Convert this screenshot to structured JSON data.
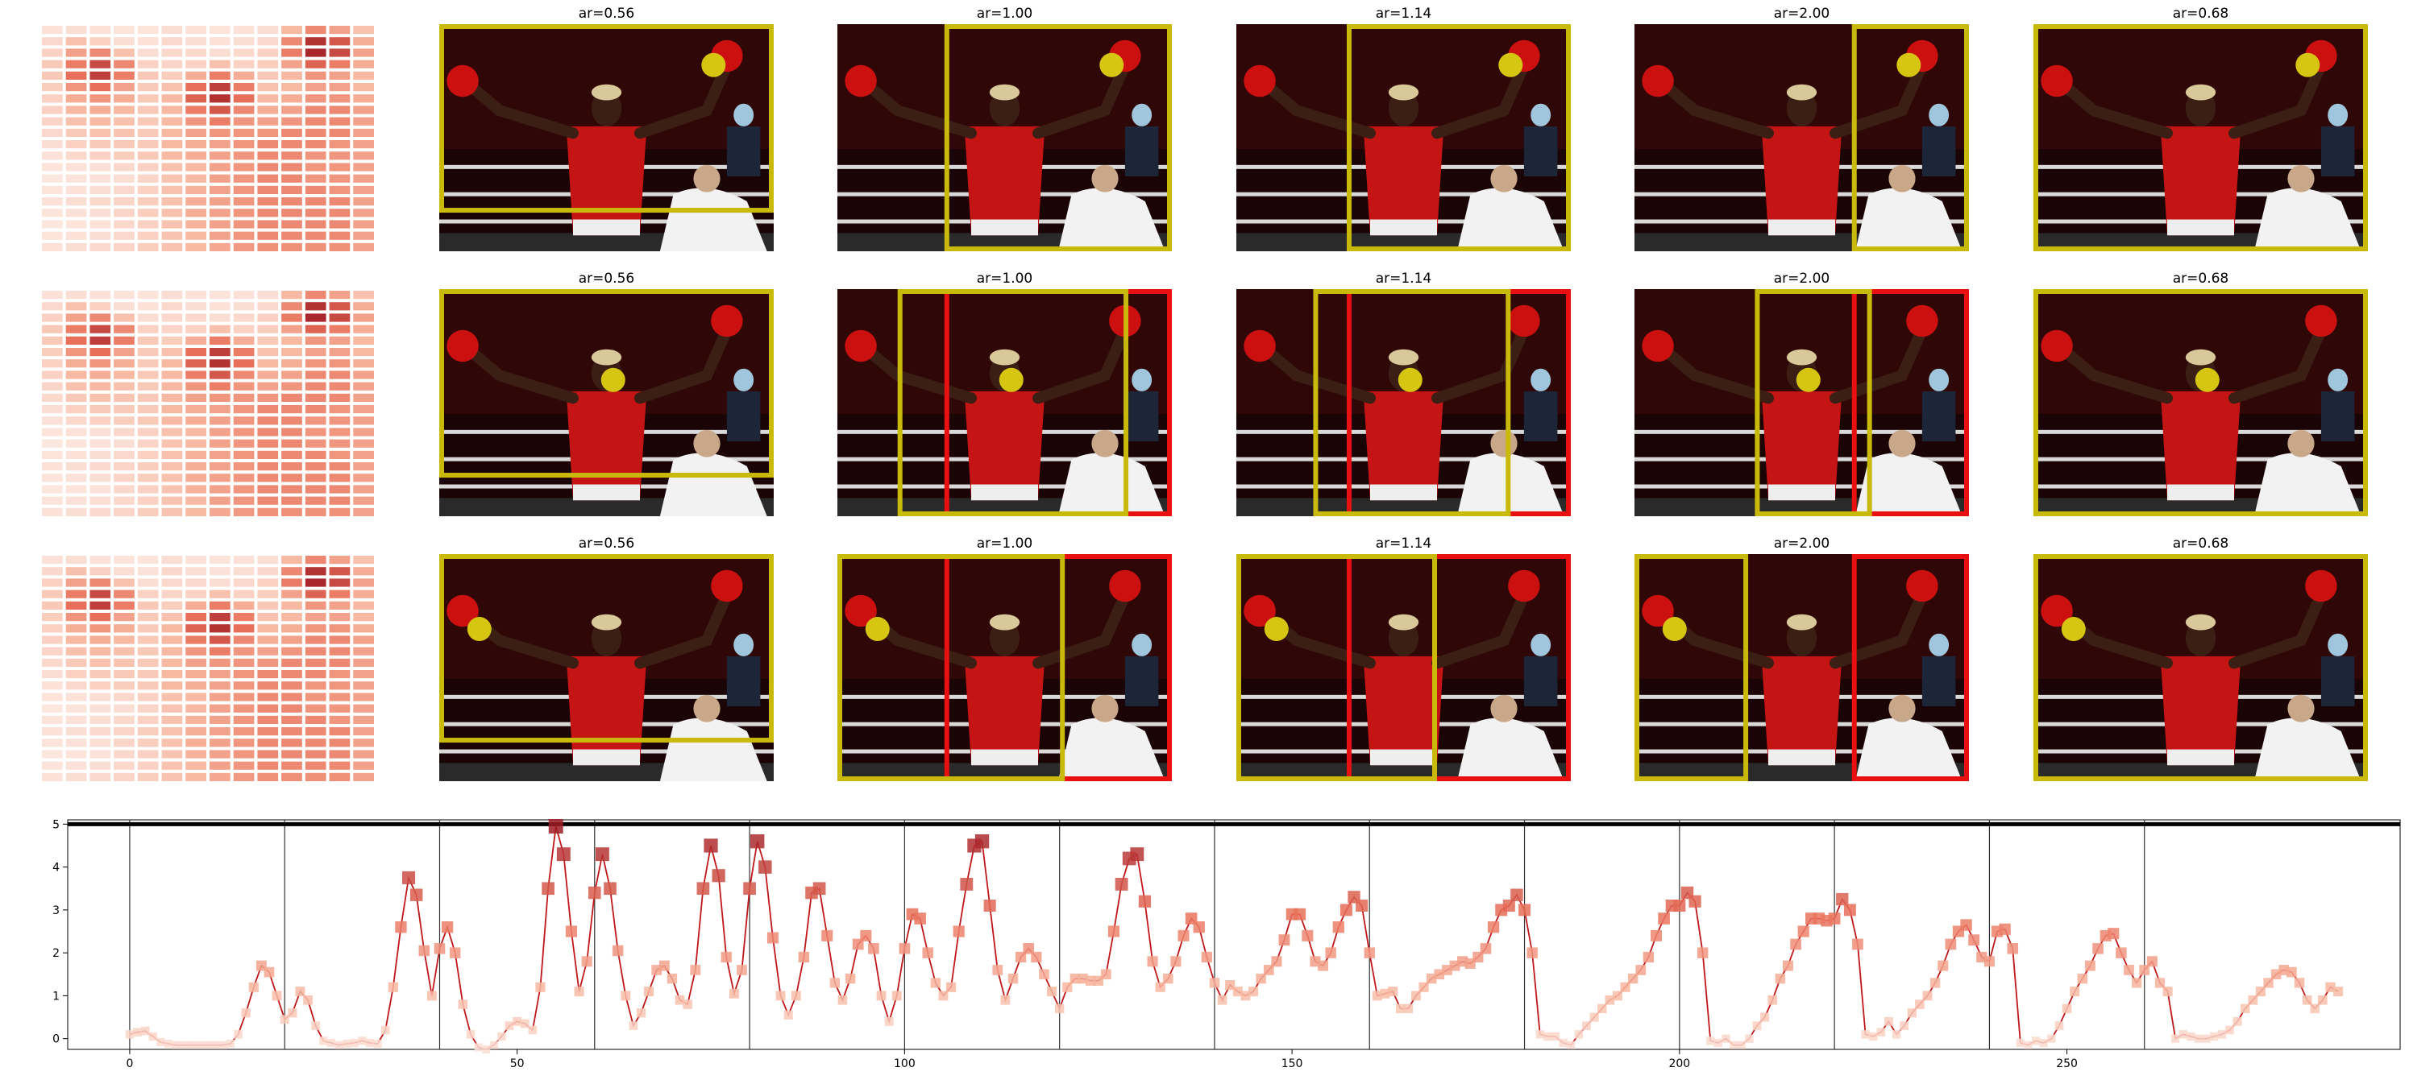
{
  "figure": {
    "panel_titles": [
      "ar=0.56",
      "ar=1.00",
      "ar=1.14",
      "ar=2.00",
      "ar=0.68"
    ],
    "rows": [
      {
        "marker": "top-right glove",
        "boxes": [
          [
            {
              "color": "yellow"
            }
          ],
          [
            {
              "color": "yellow"
            }
          ],
          [
            {
              "color": "yellow"
            }
          ],
          [
            {
              "color": "yellow"
            }
          ],
          [
            {
              "color": "yellow"
            }
          ]
        ]
      },
      {
        "marker": "face",
        "boxes": [
          [
            {
              "color": "yellow"
            }
          ],
          [
            {
              "color": "red"
            },
            {
              "color": "yellow"
            }
          ],
          [
            {
              "color": "red"
            },
            {
              "color": "yellow"
            }
          ],
          [
            {
              "color": "red"
            },
            {
              "color": "yellow"
            }
          ],
          [
            {
              "color": "yellow"
            }
          ]
        ]
      },
      {
        "marker": "left glove",
        "boxes": [
          [
            {
              "color": "yellow"
            }
          ],
          [
            {
              "color": "red"
            },
            {
              "color": "yellow"
            }
          ],
          [
            {
              "color": "red"
            },
            {
              "color": "yellow"
            }
          ],
          [
            {
              "color": "red"
            },
            {
              "color": "yellow"
            }
          ],
          [
            {
              "color": "yellow"
            }
          ]
        ]
      }
    ],
    "colors": {
      "yellow_box": "#c8b90a",
      "red_box": "#e81010",
      "marker": "#d6c611",
      "line": "#c0181a",
      "heat_low": "#fbe9e2",
      "heat_high": "#9e1a24"
    }
  },
  "chart_data": [
    {
      "type": "heatmap",
      "note": "three identical saliency heatmaps (rows x cols = 20 x 14)",
      "rows": 20,
      "cols": 14,
      "values": [
        [
          0.1,
          0.12,
          0.1,
          0.08,
          0.08,
          0.12,
          0.1,
          0.08,
          0.1,
          0.12,
          0.35,
          0.55,
          0.45,
          0.3
        ],
        [
          0.15,
          0.3,
          0.2,
          0.12,
          0.1,
          0.15,
          0.12,
          0.1,
          0.12,
          0.15,
          0.55,
          0.9,
          0.75,
          0.4
        ],
        [
          0.2,
          0.45,
          0.55,
          0.3,
          0.12,
          0.15,
          0.15,
          0.12,
          0.15,
          0.2,
          0.6,
          0.95,
          0.8,
          0.45
        ],
        [
          0.25,
          0.6,
          0.8,
          0.55,
          0.2,
          0.18,
          0.2,
          0.3,
          0.2,
          0.22,
          0.45,
          0.7,
          0.6,
          0.4
        ],
        [
          0.25,
          0.65,
          0.85,
          0.6,
          0.25,
          0.22,
          0.4,
          0.6,
          0.4,
          0.25,
          0.35,
          0.5,
          0.45,
          0.35
        ],
        [
          0.22,
          0.5,
          0.65,
          0.45,
          0.25,
          0.3,
          0.65,
          0.85,
          0.6,
          0.3,
          0.35,
          0.45,
          0.45,
          0.35
        ],
        [
          0.2,
          0.4,
          0.5,
          0.4,
          0.25,
          0.35,
          0.7,
          0.9,
          0.65,
          0.35,
          0.4,
          0.5,
          0.5,
          0.4
        ],
        [
          0.2,
          0.35,
          0.4,
          0.35,
          0.25,
          0.35,
          0.6,
          0.75,
          0.55,
          0.4,
          0.45,
          0.55,
          0.55,
          0.45
        ],
        [
          0.18,
          0.3,
          0.35,
          0.3,
          0.25,
          0.35,
          0.5,
          0.6,
          0.5,
          0.45,
          0.5,
          0.55,
          0.55,
          0.45
        ],
        [
          0.15,
          0.25,
          0.3,
          0.28,
          0.25,
          0.35,
          0.45,
          0.5,
          0.5,
          0.5,
          0.55,
          0.55,
          0.55,
          0.45
        ],
        [
          0.12,
          0.2,
          0.25,
          0.25,
          0.25,
          0.35,
          0.4,
          0.45,
          0.5,
          0.55,
          0.55,
          0.55,
          0.5,
          0.45
        ],
        [
          0.1,
          0.15,
          0.2,
          0.22,
          0.25,
          0.35,
          0.4,
          0.45,
          0.5,
          0.55,
          0.55,
          0.5,
          0.5,
          0.45
        ],
        [
          0.08,
          0.1,
          0.12,
          0.15,
          0.2,
          0.3,
          0.35,
          0.45,
          0.5,
          0.55,
          0.55,
          0.5,
          0.5,
          0.45
        ],
        [
          0.06,
          0.08,
          0.1,
          0.12,
          0.18,
          0.28,
          0.35,
          0.45,
          0.5,
          0.55,
          0.55,
          0.5,
          0.5,
          0.45
        ],
        [
          0.08,
          0.1,
          0.12,
          0.15,
          0.2,
          0.3,
          0.38,
          0.45,
          0.5,
          0.55,
          0.55,
          0.55,
          0.5,
          0.45
        ],
        [
          0.1,
          0.12,
          0.15,
          0.18,
          0.22,
          0.3,
          0.4,
          0.45,
          0.5,
          0.55,
          0.55,
          0.55,
          0.55,
          0.45
        ],
        [
          0.08,
          0.1,
          0.12,
          0.18,
          0.22,
          0.3,
          0.4,
          0.45,
          0.5,
          0.55,
          0.55,
          0.55,
          0.55,
          0.45
        ],
        [
          0.06,
          0.08,
          0.1,
          0.15,
          0.2,
          0.28,
          0.38,
          0.45,
          0.5,
          0.55,
          0.55,
          0.55,
          0.55,
          0.45
        ],
        [
          0.08,
          0.1,
          0.12,
          0.15,
          0.2,
          0.28,
          0.35,
          0.45,
          0.5,
          0.55,
          0.55,
          0.55,
          0.55,
          0.45
        ],
        [
          0.1,
          0.12,
          0.15,
          0.18,
          0.22,
          0.28,
          0.35,
          0.42,
          0.48,
          0.52,
          0.52,
          0.52,
          0.52,
          0.45
        ]
      ]
    },
    {
      "type": "line",
      "title": "",
      "xlabel": "",
      "ylabel": "",
      "xlim": [
        -8,
        293
      ],
      "ylim": [
        -0.25,
        5.1
      ],
      "xticks": [
        0,
        50,
        100,
        150,
        200,
        250
      ],
      "yticks": [
        0,
        1,
        2,
        3,
        4,
        5
      ],
      "hline": 5,
      "vlines": [
        0,
        20,
        40,
        60,
        80,
        100,
        120,
        140,
        160,
        180,
        200,
        220,
        240,
        260
      ],
      "series": [
        {
          "x_start": 0,
          "values": [
            0.1,
            0.15,
            0.18,
            0.05,
            -0.08,
            -0.12,
            -0.15,
            -0.15,
            -0.15,
            -0.15,
            -0.15,
            -0.15,
            -0.15,
            -0.12,
            0.1,
            0.6,
            1.2,
            1.7,
            1.55,
            1.0,
            0.45,
            0.6,
            1.1,
            0.9,
            0.3,
            -0.05,
            -0.1,
            -0.15,
            -0.12,
            -0.1,
            -0.05,
            -0.1,
            -0.12,
            0.2,
            1.2,
            2.6,
            3.75,
            3.35,
            2.05,
            1.0,
            2.1,
            2.6,
            2.0,
            0.8,
            0.1,
            -0.2,
            -0.25,
            -0.15,
            0.05,
            0.3,
            0.4,
            0.35,
            0.2,
            1.2,
            3.5,
            4.95,
            4.3,
            2.5,
            1.1,
            1.8,
            3.4,
            4.3,
            3.5,
            2.05,
            1.0,
            0.3,
            0.6,
            1.1,
            1.6,
            1.7,
            1.4,
            0.9,
            0.8,
            1.6,
            3.5,
            4.5,
            3.8,
            1.9,
            1.05,
            1.6,
            3.5,
            4.6,
            4.0,
            2.35,
            1.0,
            0.55,
            1.0,
            1.9,
            3.4,
            3.5,
            2.4,
            1.3,
            0.9,
            1.4,
            2.2,
            2.4,
            2.1,
            1.0,
            0.4,
            1.0,
            2.1,
            2.9,
            2.8,
            2.0,
            1.3,
            1.0,
            1.2,
            2.5,
            3.6,
            4.5,
            4.6,
            3.1,
            1.6,
            0.9,
            1.4,
            1.9,
            2.1,
            1.9,
            1.5,
            1.1,
            0.7,
            1.2,
            1.4,
            1.4,
            1.35,
            1.35,
            1.5,
            2.5,
            3.6,
            4.2,
            4.3,
            3.2,
            1.8,
            1.2,
            1.4,
            1.8,
            2.4,
            2.8,
            2.6,
            1.9,
            1.3,
            0.9,
            1.25,
            1.1,
            1.0,
            1.1,
            1.4,
            1.6,
            1.8,
            2.3,
            2.9,
            2.9,
            2.4,
            1.8,
            1.7,
            2.0,
            2.6,
            3.0,
            3.3,
            3.1,
            2.0,
            1.0,
            1.05,
            1.1,
            0.7,
            0.7,
            1.0,
            1.2,
            1.4,
            1.5,
            1.6,
            1.7,
            1.8,
            1.75,
            1.9,
            2.1,
            2.6,
            3.0,
            3.1,
            3.35,
            3.0,
            2.0,
            0.1,
            0.05,
            0.05,
            -0.1,
            -0.15,
            0.1,
            0.3,
            0.5,
            0.7,
            0.9,
            1.0,
            1.2,
            1.4,
            1.6,
            1.9,
            2.4,
            2.8,
            3.1,
            3.1,
            3.4,
            3.2,
            2.0,
            -0.05,
            -0.1,
            0.0,
            -0.15,
            -0.15,
            0.0,
            0.3,
            0.5,
            0.9,
            1.4,
            1.7,
            2.2,
            2.5,
            2.8,
            2.8,
            2.75,
            2.8,
            3.25,
            3.0,
            2.2,
            0.1,
            0.05,
            0.15,
            0.4,
            0.1,
            0.3,
            0.6,
            0.8,
            1.0,
            1.3,
            1.7,
            2.2,
            2.5,
            2.65,
            2.3,
            1.9,
            1.8,
            2.5,
            2.55,
            2.1,
            -0.1,
            -0.15,
            -0.05,
            -0.1,
            0.0,
            0.3,
            0.7,
            1.1,
            1.4,
            1.7,
            2.1,
            2.4,
            2.45,
            2.0,
            1.6,
            1.3,
            1.6,
            1.8,
            1.3,
            1.1,
            0.0,
            0.1,
            0.05,
            0.0,
            0.0,
            0.05,
            0.1,
            0.2,
            0.4,
            0.7,
            0.9,
            1.1,
            1.3,
            1.5,
            1.6,
            1.55,
            1.3,
            0.9,
            0.7,
            0.9,
            1.2,
            1.1
          ]
        }
      ]
    }
  ]
}
